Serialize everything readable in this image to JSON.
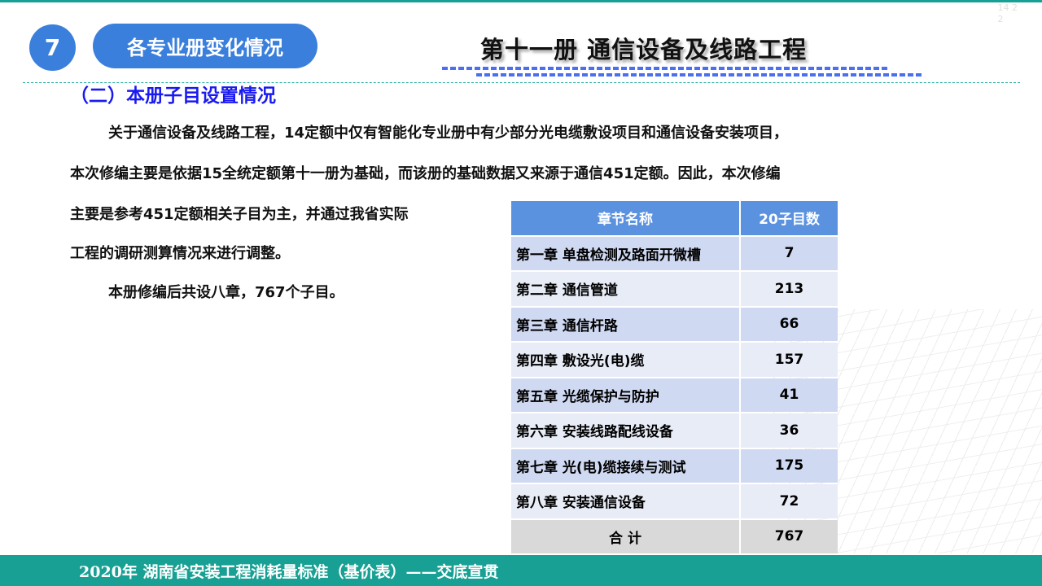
{
  "page_number": [
    "14 2",
    "2"
  ],
  "header": {
    "badge_number": "7",
    "section_title": "各专业册变化情况",
    "volume_title": "第十一册  通信设备及线路工程"
  },
  "subheading": "（二）本册子目设置情况",
  "paragraphs": [
    "关于通信设备及线路工程，14定额中仅有智能化专业册中有少部分光电缆敷设项目和通信设备安装项目，",
    "本次修编主要是依据15全统定额第十一册为基础，而该册的基础数据又来源于通信451定额。因此，本次修编",
    "主要是参考451定额相关子目为主，并通过我省实际",
    "工程的调研测算情况来进行调整。",
    "本册修编后共设八章，767个子目。"
  ],
  "table": {
    "headers": [
      "章节名称",
      "20子目数"
    ],
    "rows": [
      [
        "第一章 单盘检测及路面开微槽",
        "7"
      ],
      [
        "第二章 通信管道",
        "213"
      ],
      [
        "第三章 通信杆路",
        "66"
      ],
      [
        "第四章 敷设光(电)缆",
        "157"
      ],
      [
        "第五章 光缆保护与防护",
        "41"
      ],
      [
        "第六章 安装线路配线设备",
        "36"
      ],
      [
        "第七章 光(电)缆接续与测试",
        "175"
      ],
      [
        "第八章 安装通信设备",
        "72"
      ]
    ],
    "total": [
      "合  计",
      "767"
    ]
  },
  "footer": "2020年  湖南省安装工程消耗量标准（基价表）——交底宣贯",
  "colors": {
    "accent": "#3a7fdc",
    "teal": "#17a093",
    "heading": "#1a1af0",
    "table_header": "#5b92e0"
  }
}
